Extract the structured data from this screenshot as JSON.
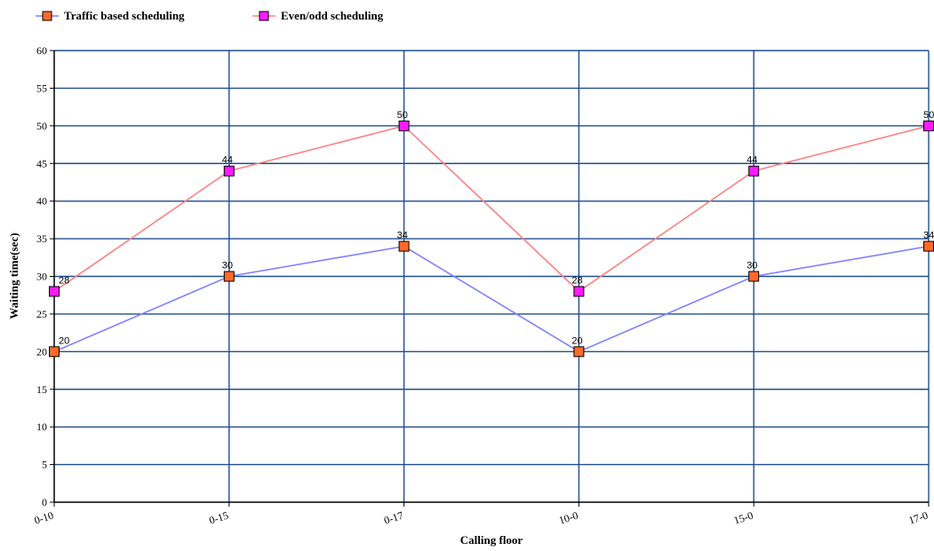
{
  "chart_data": {
    "type": "line",
    "categories": [
      "0-10",
      "0-15",
      "0-17",
      "10-0",
      "15-0",
      "17-0"
    ],
    "series": [
      {
        "name": "Traffic based scheduling",
        "values": [
          20,
          30,
          34,
          20,
          30,
          34
        ],
        "line_color": "#8080ff",
        "marker_color": "#ff6a2a"
      },
      {
        "name": "Even/odd scheduling",
        "values": [
          28,
          44,
          50,
          28,
          44,
          50
        ],
        "line_color": "#ff8080",
        "marker_color": "#ff1aff"
      }
    ],
    "title": "",
    "xlabel": "Calling floor",
    "ylabel": "Waiting time(sec)",
    "ylim": [
      0,
      60
    ],
    "ytick_step": 5,
    "grid": true,
    "grid_color": "#1f4e8c",
    "legend_position": "top-left",
    "data_labels": true
  }
}
